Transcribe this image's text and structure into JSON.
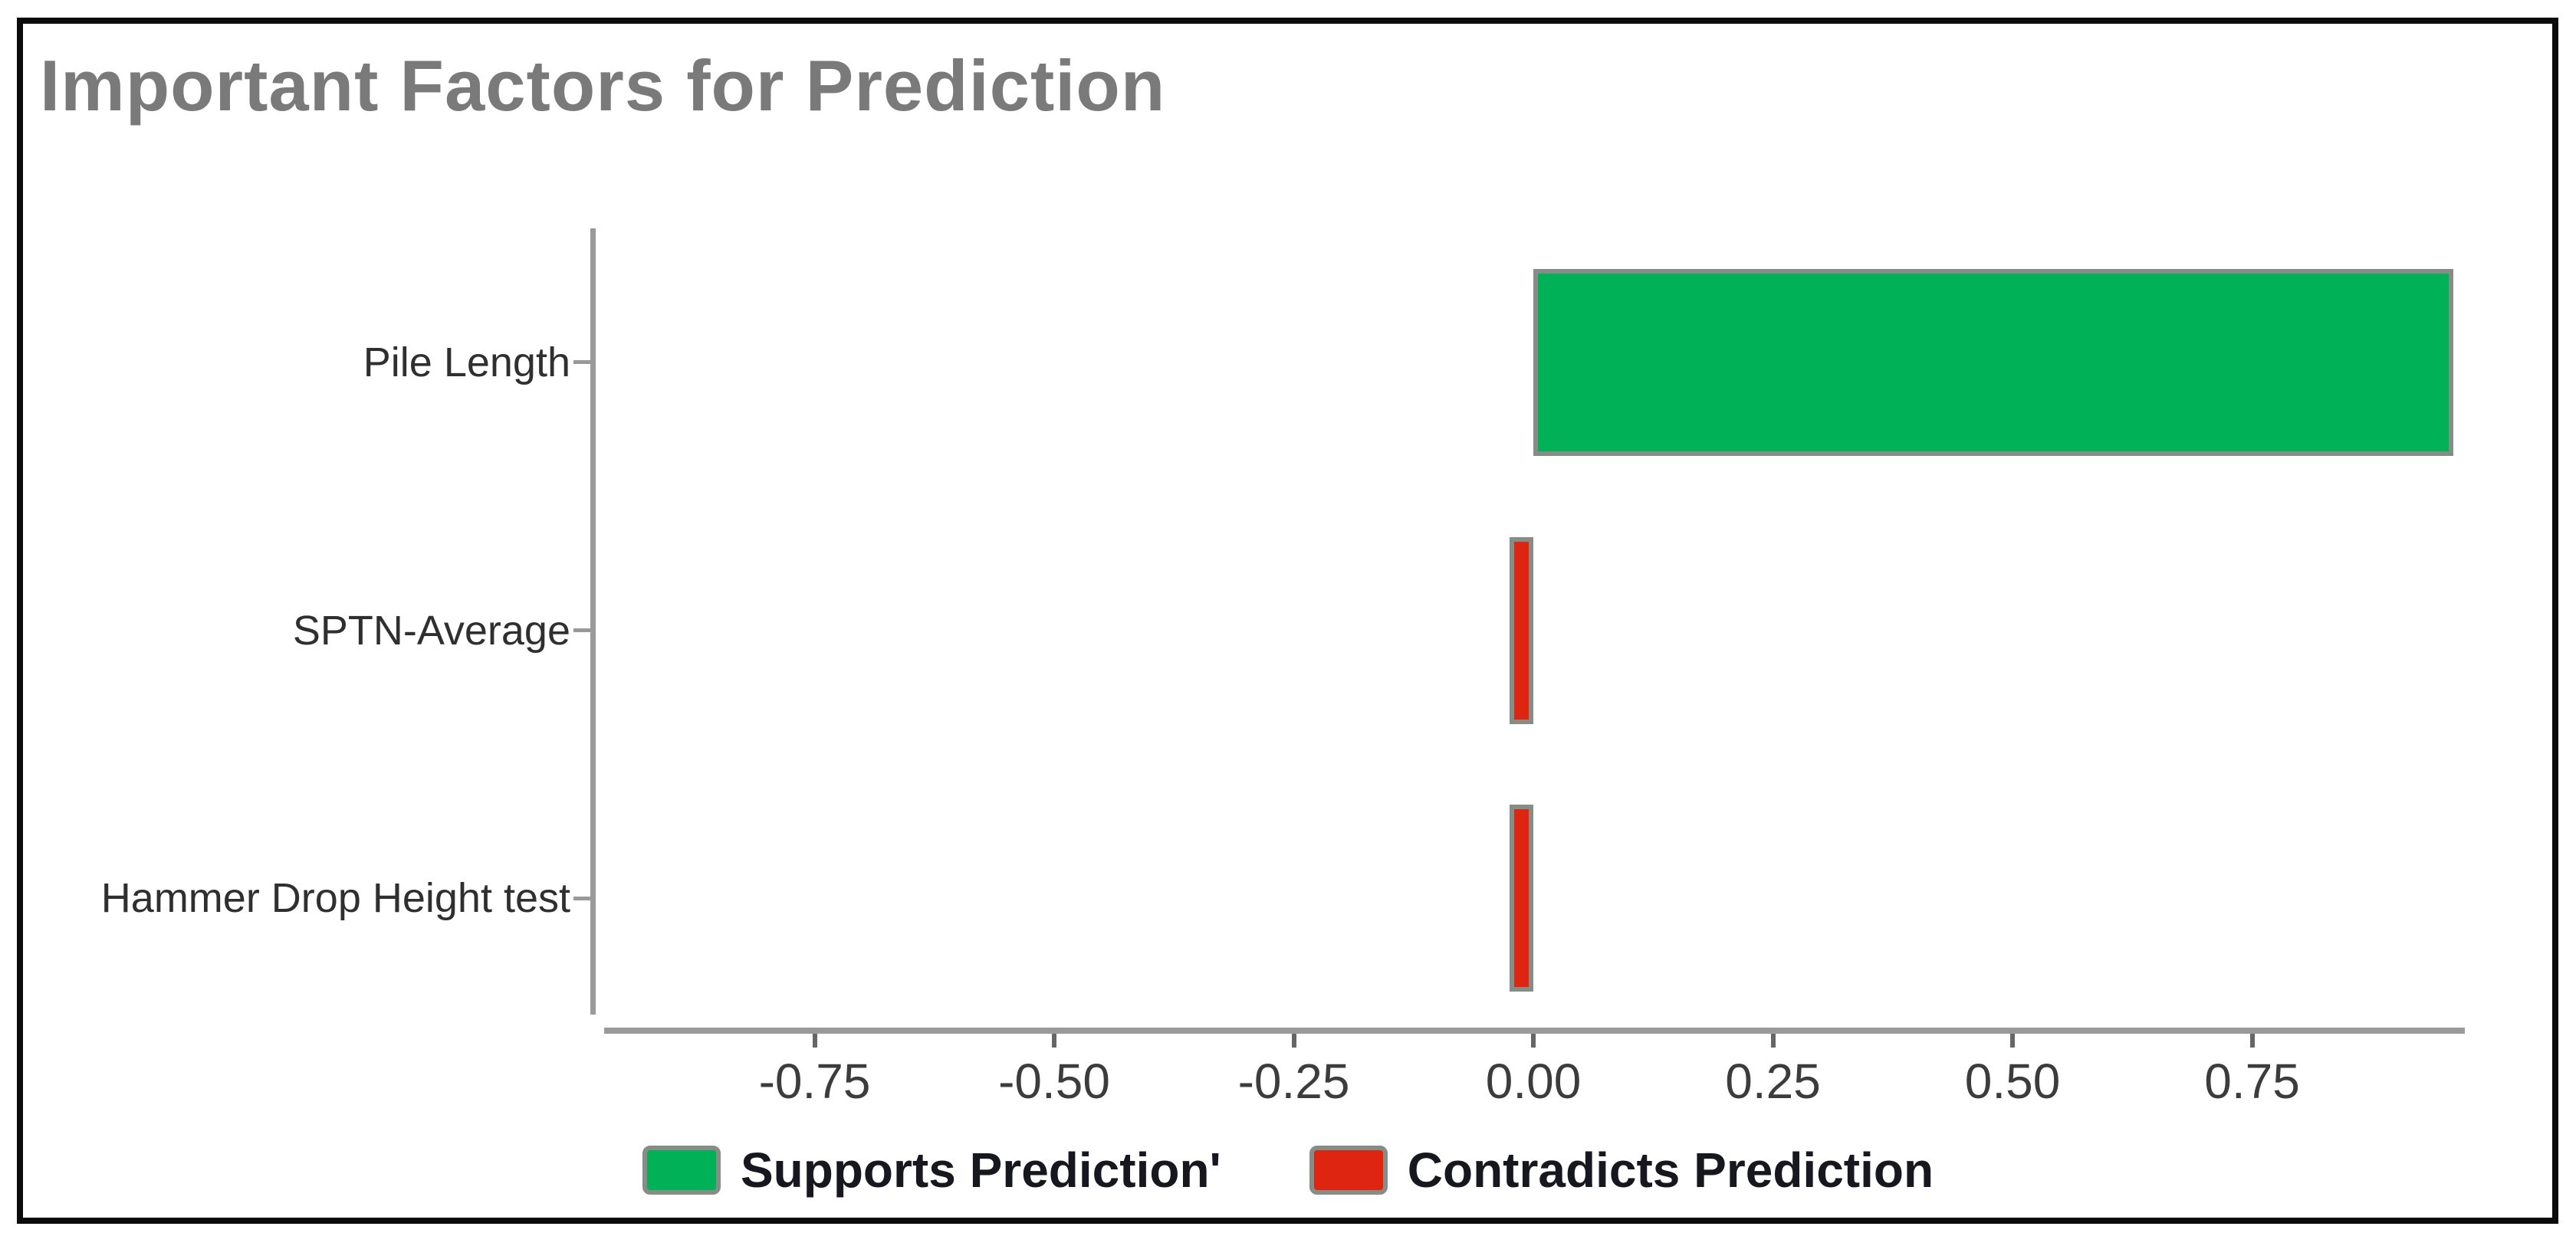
{
  "figure": {
    "title": "Important Factors for Prediction"
  },
  "chart_data": {
    "type": "bar",
    "orientation": "horizontal",
    "title": "Important Factors for Prediction",
    "categories": [
      "Pile Length",
      "SPTN-Average",
      "Hammer Drop Height test"
    ],
    "values": [
      0.96,
      -0.025,
      -0.025
    ],
    "xlim": [
      -0.984,
      0.972
    ],
    "xticks": [
      -0.75,
      -0.5,
      -0.25,
      0,
      0.25,
      0.5,
      0.75
    ],
    "xtick_labels": [
      "-0.75",
      "-0.50",
      "-0.25",
      "0.00",
      "0.25",
      "0.50",
      "0.75"
    ],
    "xlabel": "",
    "ylabel": "",
    "grid": false,
    "legend": {
      "position": "bottom-center",
      "entries": [
        {
          "label": "Supports Prediction'",
          "color": "#00b158"
        },
        {
          "label": "Contradicts Prediction",
          "color": "#de2512"
        }
      ]
    },
    "colors": {
      "positive": "#00b158",
      "negative": "#de2512",
      "bar_stroke": "#868c86",
      "axis": "#9a9a9a",
      "frame_border": "#0b0b0b",
      "title_text": "#7a7a7a",
      "tick_label_text": "#3c3c3c",
      "category_label_text": "#2f2f2f",
      "legend_text": "#17171f"
    }
  }
}
